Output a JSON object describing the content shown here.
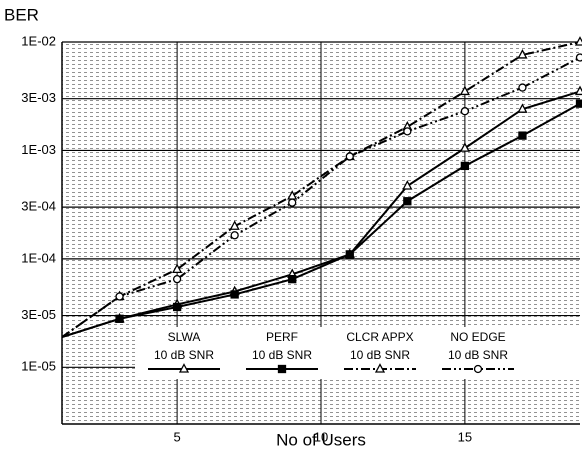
{
  "chart_data": {
    "type": "line",
    "ylabel": "BER",
    "xlabel": "No of Users",
    "ylog": true,
    "grid": true,
    "xlim": [
      1,
      19
    ],
    "ylim": [
      3e-06,
      0.01
    ],
    "xticks": [
      5,
      10,
      15
    ],
    "yticks": [
      {
        "value": 0.01,
        "label": "1E-02"
      },
      {
        "value": 0.003,
        "label": "3E-03"
      },
      {
        "value": 0.001,
        "label": "1E-03"
      },
      {
        "value": 0.0003,
        "label": "3E-04"
      },
      {
        "value": 0.0001,
        "label": "1E-04"
      },
      {
        "value": 3e-05,
        "label": "3E-05"
      },
      {
        "value": 1e-05,
        "label": "1E-05"
      }
    ],
    "x": [
      1,
      3,
      5,
      7,
      9,
      11,
      13,
      15,
      17,
      19
    ],
    "series": [
      {
        "name": "SLWA",
        "sublabel": "10 dB SNR",
        "color": "#000000",
        "dash": "none",
        "marker": "triangle",
        "values": [
          1.9e-05,
          2.8e-05,
          3.8e-05,
          5e-05,
          7.2e-05,
          0.00011,
          0.00047,
          0.00105,
          0.0024,
          0.0035
        ]
      },
      {
        "name": "PERF",
        "sublabel": "10 dB SNR",
        "color": "#000000",
        "dash": "none",
        "marker": "square",
        "values": [
          1.9e-05,
          2.8e-05,
          3.6e-05,
          4.7e-05,
          6.5e-05,
          0.00011,
          0.00034,
          0.00072,
          0.00137,
          0.0027
        ]
      },
      {
        "name": "CLCR APPX",
        "sublabel": "10 dB SNR",
        "color": "#000000",
        "dash": "9 3 2 3",
        "marker": "triangle",
        "values": [
          1.9e-05,
          4.5e-05,
          8e-05,
          0.0002,
          0.00038,
          0.00088,
          0.00165,
          0.0035,
          0.0076,
          0.01
        ]
      },
      {
        "name": "NO EDGE",
        "sublabel": "10 dB SNR",
        "color": "#000000",
        "dash": "9 3 2 3 2 3",
        "marker": "circle",
        "values": [
          1.9e-05,
          4.5e-05,
          6.5e-05,
          0.000165,
          0.00033,
          0.00088,
          0.0015,
          0.0023,
          0.0038,
          0.0072
        ]
      }
    ]
  }
}
